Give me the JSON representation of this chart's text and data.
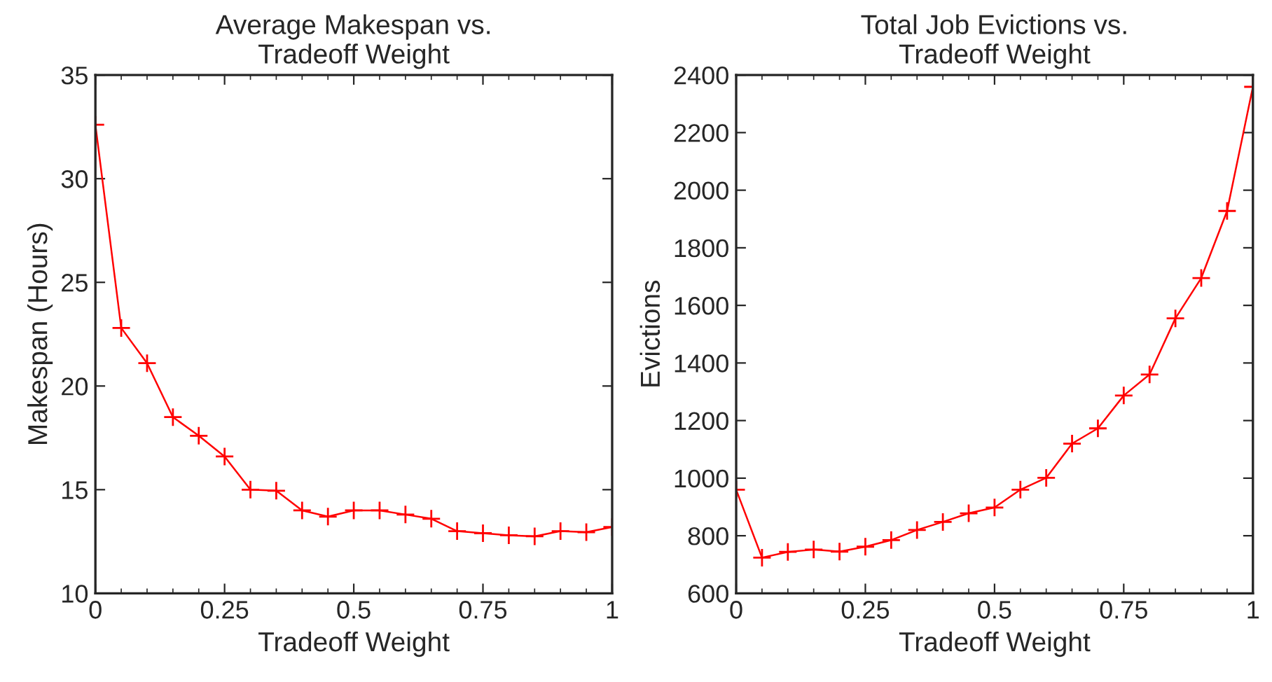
{
  "chart_data": [
    {
      "type": "line",
      "title": "Average Makespan vs.\nTradeoff Weight",
      "xlabel": "Tradeoff Weight",
      "ylabel": "Makespan (Hours)",
      "x": [
        0,
        0.05,
        0.1,
        0.15,
        0.2,
        0.25,
        0.3,
        0.35,
        0.4,
        0.45,
        0.5,
        0.55,
        0.6,
        0.65,
        0.7,
        0.75,
        0.8,
        0.85,
        0.9,
        0.95,
        1
      ],
      "series": [
        {
          "color": "#ff0000",
          "values": [
            32.6,
            22.8,
            21.1,
            18.5,
            17.6,
            16.6,
            15.0,
            14.95,
            14.0,
            13.7,
            14.0,
            14.0,
            13.8,
            13.6,
            13.0,
            12.9,
            12.8,
            12.75,
            13.0,
            12.95,
            13.2
          ]
        }
      ],
      "xlim": [
        0,
        1
      ],
      "xticks": [
        0,
        0.25,
        0.5,
        0.75,
        1
      ],
      "ylim": [
        10,
        35
      ],
      "yticks": [
        10,
        15,
        20,
        25,
        30,
        35
      ],
      "marker": "cross",
      "line_style": "solid",
      "grid": false,
      "legend": false
    },
    {
      "type": "line",
      "title": "Total Job Evictions vs.\nTradeoff Weight",
      "xlabel": "Tradeoff Weight",
      "ylabel": "Evictions",
      "x": [
        0,
        0.05,
        0.1,
        0.15,
        0.2,
        0.25,
        0.3,
        0.35,
        0.4,
        0.45,
        0.5,
        0.55,
        0.6,
        0.65,
        0.7,
        0.75,
        0.8,
        0.85,
        0.9,
        0.95,
        1
      ],
      "series": [
        {
          "color": "#ff0000",
          "values": [
            960,
            724,
            744,
            752,
            745,
            762,
            785,
            820,
            848,
            878,
            898,
            960,
            1001,
            1120,
            1173,
            1287,
            1360,
            1555,
            1695,
            1928,
            2359
          ]
        }
      ],
      "xlim": [
        0,
        1
      ],
      "xticks": [
        0,
        0.25,
        0.5,
        0.75,
        1
      ],
      "ylim": [
        600,
        2400
      ],
      "yticks": [
        600,
        800,
        1000,
        1200,
        1400,
        1600,
        1800,
        2000,
        2200,
        2400
      ],
      "marker": "cross",
      "line_style": "solid",
      "grid": false,
      "legend": false
    }
  ]
}
